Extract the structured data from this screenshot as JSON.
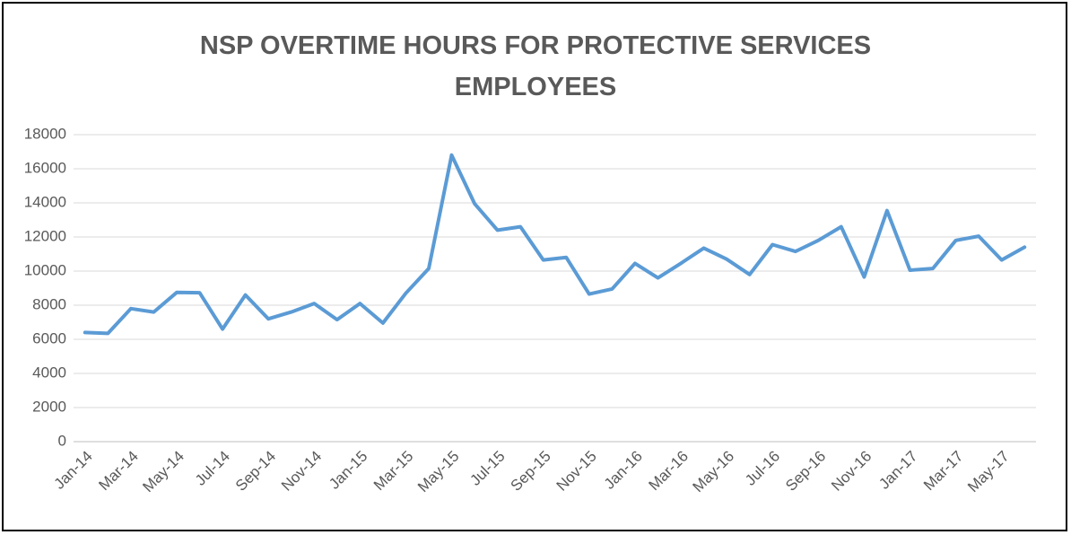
{
  "chart_data": {
    "type": "line",
    "title": "NSP OVERTIME HOURS FOR PROTECTIVE SERVICES EMPLOYEES",
    "categories": [
      "Jan-14",
      null,
      "Mar-14",
      null,
      "May-14",
      null,
      "Jul-14",
      null,
      "Sep-14",
      null,
      "Nov-14",
      null,
      "Jan-15",
      null,
      "Mar-15",
      null,
      "May-15",
      null,
      "Jul-15",
      null,
      "Sep-15",
      null,
      "Nov-15",
      null,
      "Jan-16",
      null,
      "Mar-16",
      null,
      "May-16",
      null,
      "Jul-16",
      null,
      "Sep-16",
      null,
      "Nov-16",
      null,
      "Jan-17",
      null,
      "Mar-17",
      null,
      "May-17",
      null
    ],
    "series": [
      {
        "color": "#5b9bd5",
        "values": [
          6400,
          6350,
          7800,
          7600,
          8750,
          8730,
          6600,
          8600,
          7200,
          7600,
          8100,
          7150,
          8100,
          6950,
          8700,
          10150,
          16800,
          13950,
          12400,
          12600,
          10650,
          10800,
          8650,
          8950,
          10450,
          9600,
          10450,
          11350,
          10700,
          9800,
          11550,
          11150,
          11800,
          12600,
          9650,
          13550,
          10050,
          10150,
          11800,
          12050,
          10650,
          11400
        ]
      }
    ],
    "ylim": [
      0,
      18000
    ],
    "yticks": [
      0,
      2000,
      4000,
      6000,
      8000,
      10000,
      12000,
      14000,
      16000,
      18000
    ],
    "grid": true
  }
}
